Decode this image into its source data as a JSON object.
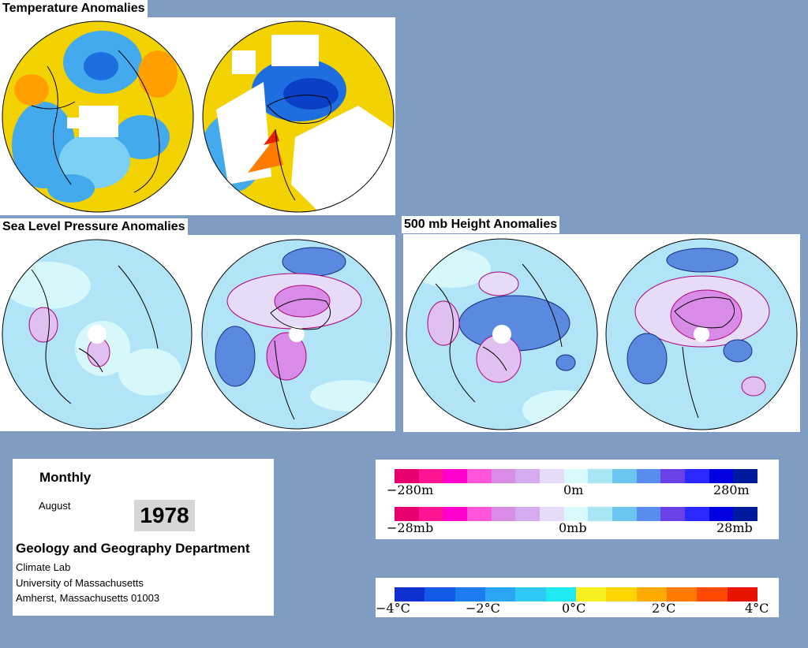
{
  "titles": {
    "temperature": "Temperature Anomalies",
    "slp": "Sea Level Pressure Anomalies",
    "height500": "500 mb Height Anomalies"
  },
  "info": {
    "period": "Monthly",
    "month": "August",
    "year": "1978",
    "department": "Geology and Geography Department",
    "lab": "Climate Lab",
    "university": "University of Massachusetts",
    "address": "Amherst, Massachusetts 01003"
  },
  "height_scale": {
    "colors": [
      "#e8006e",
      "#ff1493",
      "#ff00cc",
      "#ff55dd",
      "#d88ce8",
      "#d4aaf0",
      "#e6dcf8",
      "#d8fafc",
      "#a8e6f6",
      "#6cc4f0",
      "#5a8cf0",
      "#6a40e8",
      "#2a2aff",
      "#0000e0",
      "#001a9e"
    ],
    "labels": [
      "−280m",
      "0m",
      "280m"
    ]
  },
  "slp_scale": {
    "colors": [
      "#e8006e",
      "#ff1493",
      "#ff00cc",
      "#ff55dd",
      "#d88ce8",
      "#d4aaf0",
      "#e6dcf8",
      "#d8fafc",
      "#a8e6f6",
      "#6cc4f0",
      "#5a8cf0",
      "#6a40e8",
      "#2a2aff",
      "#0000e0",
      "#001a9e"
    ],
    "labels": [
      "−28mb",
      "0mb",
      "28mb"
    ]
  },
  "temp_scale": {
    "colors": [
      "#1030d0",
      "#1458e8",
      "#1c7cf0",
      "#2aa6f4",
      "#30c8f4",
      "#20e8f0",
      "#f6f020",
      "#ffd400",
      "#ffaa00",
      "#ff7a00",
      "#ff4a00",
      "#e81400"
    ],
    "labels": [
      "−4°C",
      "−2°C",
      "0°C",
      "2°C",
      "4°C"
    ]
  }
}
